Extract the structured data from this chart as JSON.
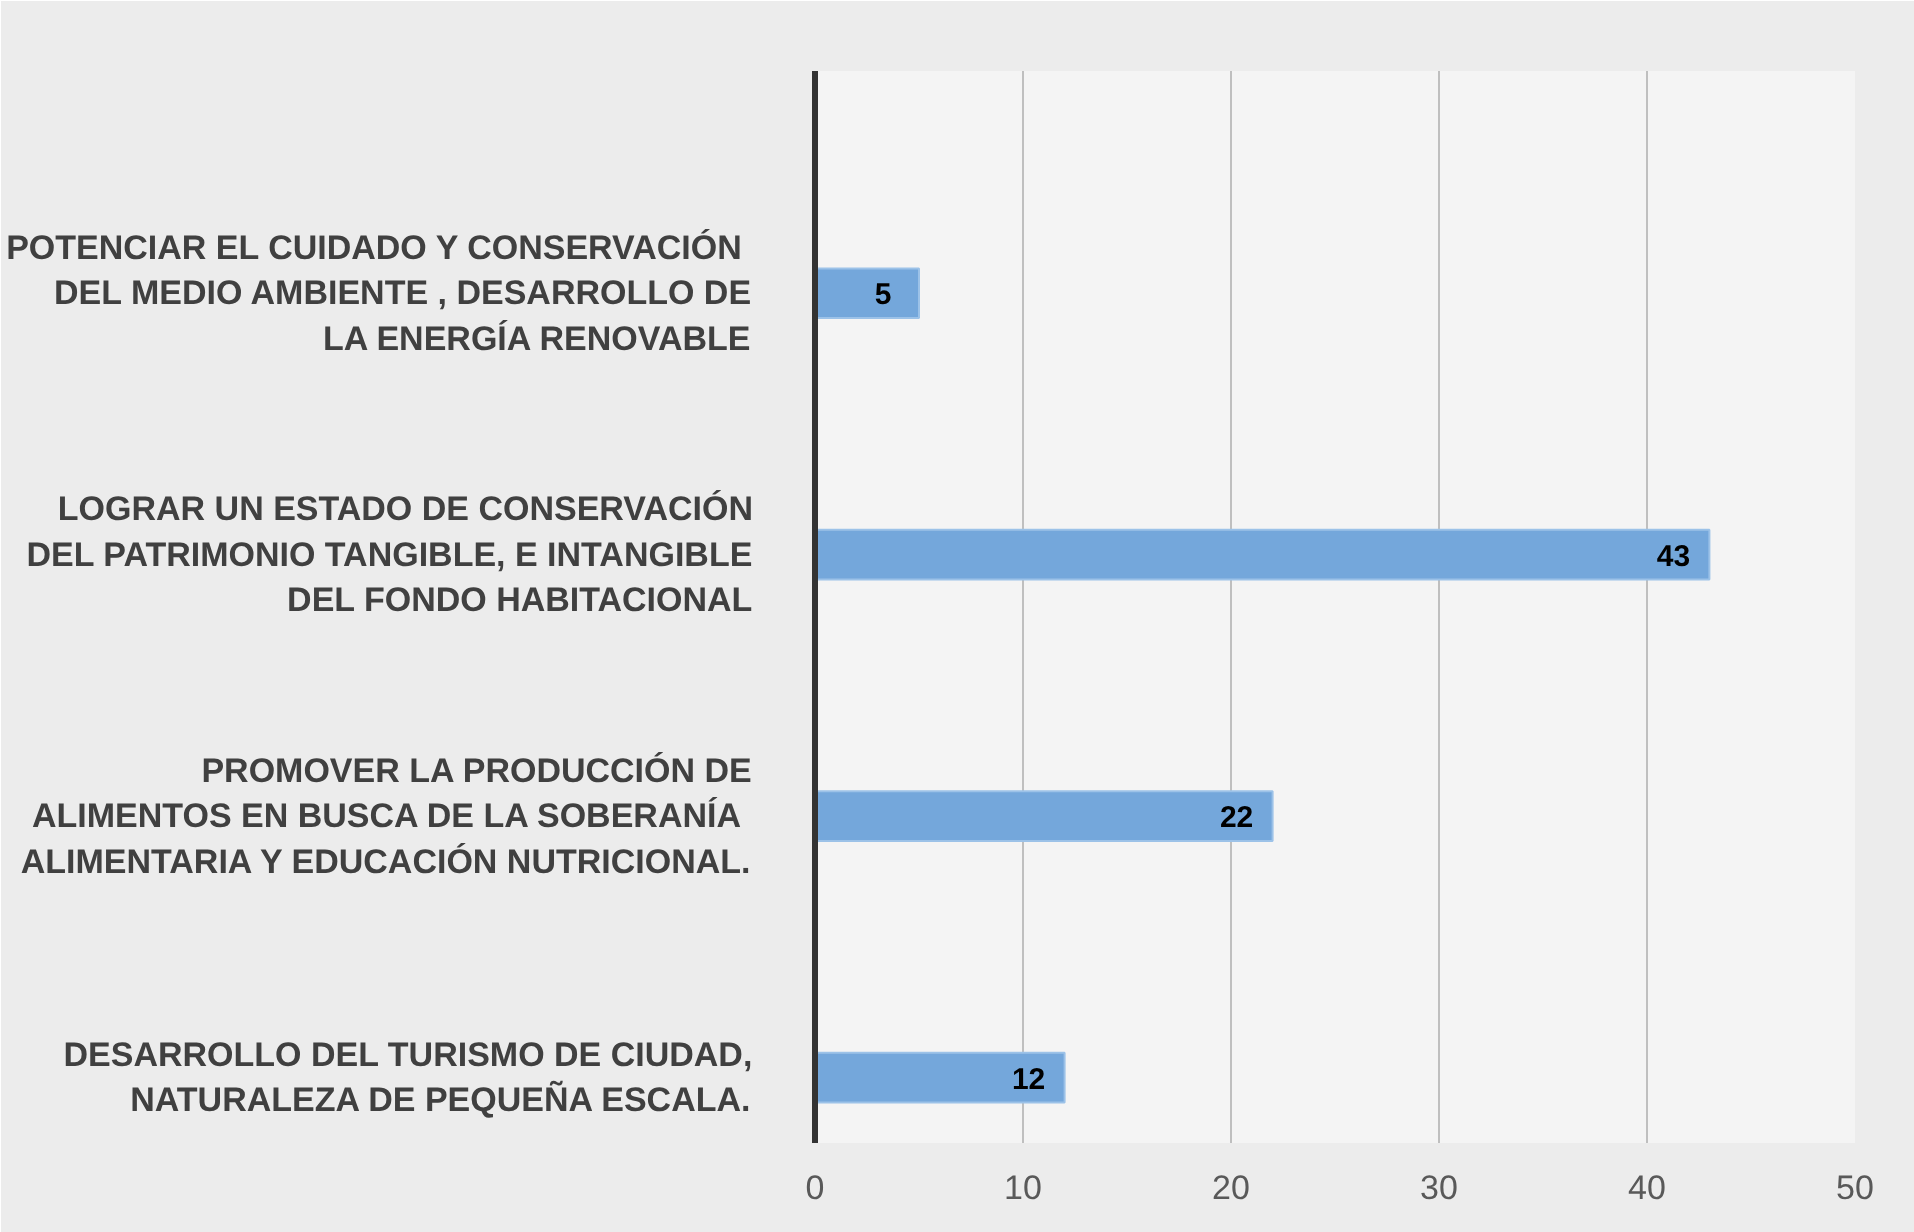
{
  "chart_data": {
    "type": "bar",
    "orientation": "horizontal",
    "categories": [
      "POTENCIAR  EL CUIDADO Y CONSERVACIÓN\nDEL MEDIO AMBIENTE , DESARROLLO DE\nLA ENERGÍA RENOVABLE",
      "LOGRAR UN ESTADO DE CONSERVACIÓN\nDEL PATRIMONIO TANGIBLE, E INTANGIBLE\nDEL FONDO HABITACIONAL",
      "PROMOVER LA PRODUCCIÓN DE\nALIMENTOS EN BUSCA DE  LA SOBERANÍA\nALIMENTARIA Y EDUCACIÓN NUTRICIONAL.",
      "DESARROLLO DEL TURISMO DE CIUDAD,\nNATURALEZA DE PEQUEÑA ESCALA."
    ],
    "values": [
      5,
      43,
      22,
      12
    ],
    "color": "#74a7db",
    "xlim": [
      0,
      50
    ],
    "xticks": [
      0,
      10,
      20,
      30,
      40,
      50
    ],
    "grid": "x",
    "data_labels": true
  }
}
